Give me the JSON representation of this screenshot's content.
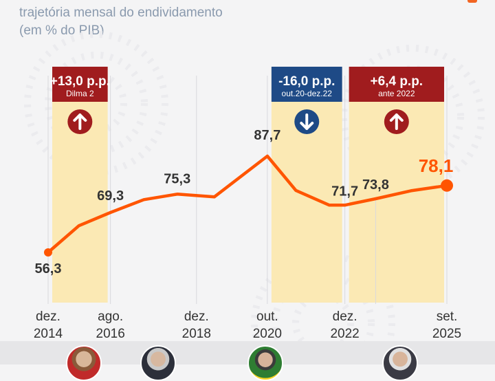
{
  "header": {
    "subtitle_line1": "trajetória mensal do endividamento",
    "subtitle_line2": "(em % do PIB)"
  },
  "chart_data": {
    "type": "line",
    "title": "",
    "subtitle": "trajetória mensal do endividamento (em % do PIB)",
    "xlabel": "",
    "ylabel": "",
    "ylim": [
      50,
      100
    ],
    "grid": true,
    "x": [
      2014.92,
      2015.75,
      2016.6,
      2017.5,
      2018.4,
      2019.4,
      2020.83,
      2021.6,
      2022.5,
      2022.92,
      2023.75,
      2024.7,
      2025.67
    ],
    "values": [
      56.3,
      65.0,
      69.3,
      73.5,
      75.3,
      74.4,
      87.7,
      76.5,
      71.7,
      71.7,
      73.8,
      76.4,
      78.1
    ],
    "point_labels": [
      {
        "x": 2014.92,
        "label": "56,3"
      },
      {
        "x": 2016.6,
        "label": "69,3"
      },
      {
        "x": 2018.4,
        "label": "75,3"
      },
      {
        "x": 2020.83,
        "label": "87,7"
      },
      {
        "x": 2022.92,
        "label": "71,7"
      },
      {
        "x": 2023.75,
        "label": "73,8"
      },
      {
        "x": 2025.67,
        "label": "78,1"
      }
    ],
    "x_tick_labels": [
      {
        "x": 2014.92,
        "line1": "dez.",
        "line2": "2014"
      },
      {
        "x": 2016.6,
        "line1": "ago.",
        "line2": "2016"
      },
      {
        "x": 2018.92,
        "line1": "dez.",
        "line2": "2018"
      },
      {
        "x": 2020.83,
        "line1": "out.",
        "line2": "2020"
      },
      {
        "x": 2022.92,
        "line1": "dez.",
        "line2": "2022"
      },
      {
        "x": 2025.67,
        "line1": "set.",
        "line2": "2025"
      }
    ],
    "annotations": [
      {
        "x_start": 2014.92,
        "x_end": 2016.6,
        "value": "+13,0 p.p.",
        "caption": "Dilma 2",
        "direction": "up",
        "color": "#a01c1e"
      },
      {
        "x_start": 2020.83,
        "x_end": 2022.92,
        "value": "-16,0 p.p.",
        "caption": "out.20-dez.22",
        "direction": "down",
        "color": "#1e4a86"
      },
      {
        "x_start": 2022.92,
        "x_end": 2025.67,
        "value": "+6,4 p.p.",
        "caption": "ante 2022",
        "direction": "up",
        "color": "#a01c1e"
      }
    ],
    "colors": {
      "line": "#ff5500",
      "shade": "#fbe9b4",
      "up": "#a01c1e",
      "down": "#1e4a86",
      "label": "#333333",
      "highlight": "#ff5500"
    }
  }
}
